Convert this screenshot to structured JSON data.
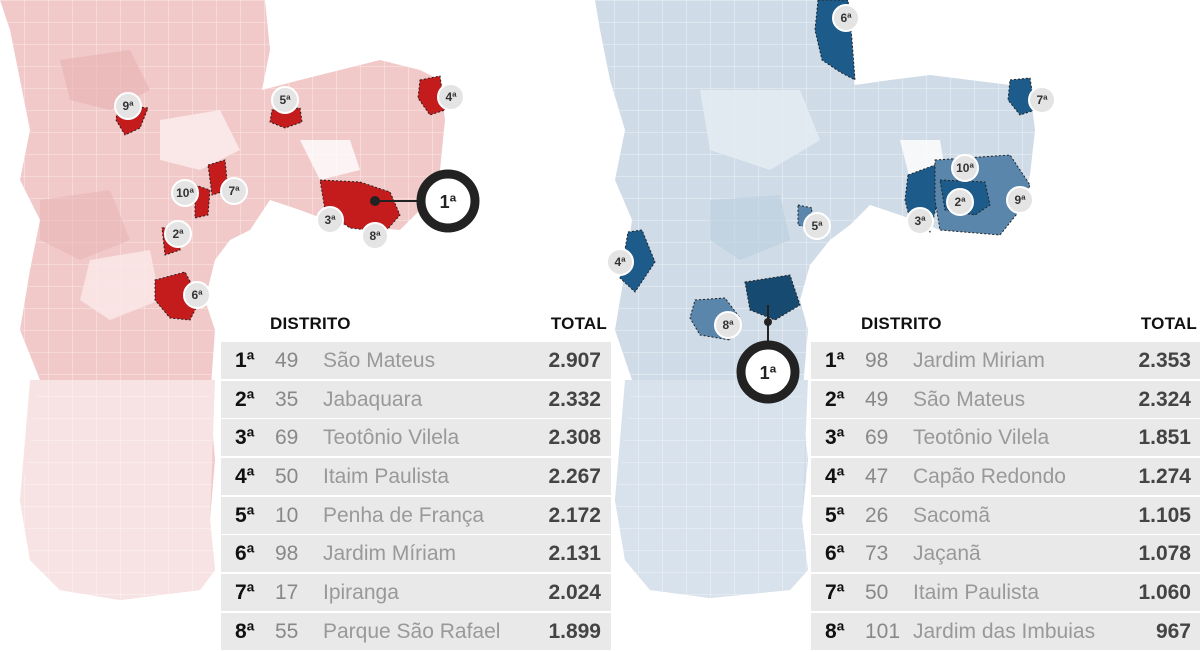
{
  "tables": [
    {
      "header": {
        "district": "DISTRITO",
        "total": "TOTAL"
      },
      "rows": [
        {
          "rank": "1ª",
          "num": "49",
          "name": "São Mateus",
          "total": "2.907"
        },
        {
          "rank": "2ª",
          "num": "35",
          "name": "Jabaquara",
          "total": "2.332"
        },
        {
          "rank": "3ª",
          "num": "69",
          "name": "Teotônio Vilela",
          "total": "2.308"
        },
        {
          "rank": "4ª",
          "num": "50",
          "name": "Itaim Paulista",
          "total": "2.267"
        },
        {
          "rank": "5ª",
          "num": "10",
          "name": "Penha de França",
          "total": "2.172"
        },
        {
          "rank": "6ª",
          "num": "98",
          "name": "Jardim Míriam",
          "total": "2.131"
        },
        {
          "rank": "7ª",
          "num": "17",
          "name": "Ipiranga",
          "total": "2.024"
        },
        {
          "rank": "8ª",
          "num": "55",
          "name": "Parque São Rafael",
          "total": "1.899"
        }
      ]
    },
    {
      "header": {
        "district": "DISTRITO",
        "total": "TOTAL"
      },
      "rows": [
        {
          "rank": "1ª",
          "num": "98",
          "name": "Jardim Miriam",
          "total": "2.353"
        },
        {
          "rank": "2ª",
          "num": "49",
          "name": "São Mateus",
          "total": "2.324"
        },
        {
          "rank": "3ª",
          "num": "69",
          "name": "Teotônio Vilela",
          "total": "1.851"
        },
        {
          "rank": "4ª",
          "num": "47",
          "name": "Capão Redondo",
          "total": "1.274"
        },
        {
          "rank": "5ª",
          "num": "26",
          "name": "Sacomã",
          "total": "1.105"
        },
        {
          "rank": "6ª",
          "num": "73",
          "name": "Jaçanã",
          "total": "1.078"
        },
        {
          "rank": "7ª",
          "num": "50",
          "name": "Itaim Paulista",
          "total": "1.060"
        },
        {
          "rank": "8ª",
          "num": "101",
          "name": "Jardim das Imbuias",
          "total": "967"
        }
      ]
    }
  ],
  "maps": [
    {
      "theme": "red",
      "base_color": "#f3d3d3",
      "highlight_color": "#c41c1c",
      "badges": [
        "1ª",
        "2ª",
        "3ª",
        "4ª",
        "5ª",
        "6ª",
        "7ª",
        "8ª",
        "9ª",
        "10ª"
      ]
    },
    {
      "theme": "blue",
      "base_color": "#d3e0ea",
      "highlight_color": "#1d5b8a",
      "badges": [
        "1ª",
        "2ª",
        "3ª",
        "4ª",
        "5ª",
        "6ª",
        "7ª",
        "8ª",
        "9ª",
        "10ª"
      ]
    }
  ]
}
